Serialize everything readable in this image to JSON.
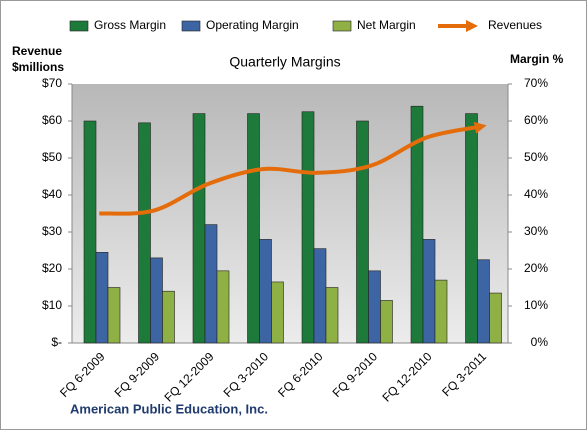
{
  "chart_data": {
    "type": "bar",
    "title": "Quarterly Margins",
    "ylabel": [
      "Revenue",
      "$millions"
    ],
    "y2label": "Margin %",
    "footer": "American Public Education, Inc.",
    "categories": [
      "FQ 6-2009",
      "FQ 9-2009",
      "FQ 12-2009",
      "FQ 3-2010",
      "FQ 6-2010",
      "FQ 9-2010",
      "FQ 12-2010",
      "FQ 3-2011"
    ],
    "series": [
      {
        "name": "Gross Margin",
        "color": "#1d7a3a",
        "axis": "y2",
        "values": [
          60,
          59.5,
          62,
          62,
          62.5,
          60,
          64,
          62
        ]
      },
      {
        "name": "Operating Margin",
        "color": "#3d64a3",
        "axis": "y2",
        "values": [
          24.5,
          23,
          32,
          28,
          25.5,
          19.5,
          28,
          22.5
        ]
      },
      {
        "name": "Net Margin",
        "color": "#8fb044",
        "axis": "y2",
        "values": [
          15,
          14,
          19.5,
          16.5,
          15,
          11.5,
          17,
          13.5
        ]
      },
      {
        "name": "Revenues",
        "color": "#e46c0a",
        "type": "line",
        "values": [
          35,
          35.8,
          43,
          47,
          46,
          48,
          55.5,
          58.5
        ]
      }
    ],
    "ylim": [
      0,
      70
    ],
    "yticks": [
      {
        "value": 0,
        "label": "$-"
      },
      {
        "value": 10,
        "label": "$10"
      },
      {
        "value": 20,
        "label": "$20"
      },
      {
        "value": 30,
        "label": "$30"
      },
      {
        "value": 40,
        "label": "$40"
      },
      {
        "value": 50,
        "label": "$50"
      },
      {
        "value": 60,
        "label": "$60"
      },
      {
        "value": 70,
        "label": "$70"
      }
    ],
    "y2lim": [
      0,
      70
    ],
    "y2ticks": [
      {
        "value": 0,
        "label": "0%"
      },
      {
        "value": 10,
        "label": "10%"
      },
      {
        "value": 20,
        "label": "20%"
      },
      {
        "value": 30,
        "label": "30%"
      },
      {
        "value": 40,
        "label": "40%"
      },
      {
        "value": 50,
        "label": "50%"
      },
      {
        "value": 60,
        "label": "60%"
      },
      {
        "value": 70,
        "label": "70%"
      }
    ],
    "legend": "top"
  }
}
